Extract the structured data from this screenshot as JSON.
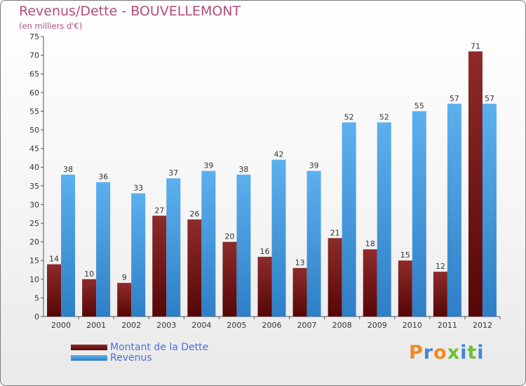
{
  "title": "Revenus/Dette - BOUVELLEMONT",
  "subtitle": "(en milliers d'€)",
  "logo": {
    "letters": [
      "P",
      "r",
      "o",
      "x",
      "i",
      "t",
      "i"
    ],
    "colors": [
      "#f08a1e",
      "#3e88d8",
      "#f08a1e",
      "#6cbf3a",
      "#3e88d8",
      "#6cbf3a",
      "#3e88d8"
    ]
  },
  "colors": {
    "dette": "#7a1b1b",
    "revenus": "#4aa3e6"
  },
  "chart_data": {
    "type": "bar",
    "title": "Revenus/Dette - BOUVELLEMONT",
    "subtitle": "(en milliers d'€)",
    "categories": [
      "2000",
      "2001",
      "2002",
      "2003",
      "2004",
      "2005",
      "2006",
      "2007",
      "2008",
      "2009",
      "2010",
      "2011",
      "2012"
    ],
    "series": [
      {
        "name": "Montant de la Dette",
        "values": [
          14,
          10,
          9,
          27,
          26,
          20,
          16,
          13,
          21,
          18,
          15,
          12,
          71
        ]
      },
      {
        "name": "Revenus",
        "values": [
          38,
          36,
          33,
          37,
          39,
          38,
          42,
          39,
          52,
          52,
          55,
          57,
          57
        ]
      }
    ],
    "ylim": [
      0,
      75
    ],
    "yticks": [
      0,
      5,
      10,
      15,
      20,
      25,
      30,
      35,
      40,
      45,
      50,
      55,
      60,
      65,
      70,
      75
    ],
    "grid": false,
    "legend": "bottom-left"
  }
}
